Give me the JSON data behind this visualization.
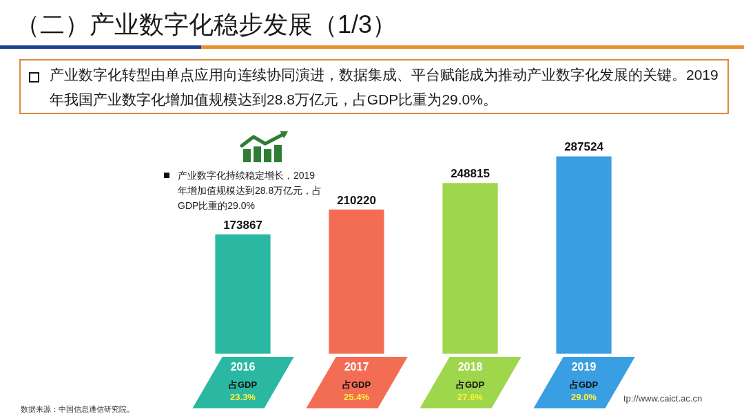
{
  "chart_data": {
    "type": "bar",
    "title": "（二）产业数字化稳步发展（1/3）",
    "subtitle": "产业数字化转型由单点应用向连续协同演进，数据集成、平台赋能成为推动产业数字化发展的关键。2019年我国产业数字化增加值规模达到28.8万亿元，占GDP比重为29.0%。",
    "categories": [
      "2016",
      "2017",
      "2018",
      "2019"
    ],
    "values": [
      173867,
      210220,
      248815,
      287524
    ],
    "colors": [
      "#2bb8a2",
      "#f36d55",
      "#9ed64c",
      "#3a9ee2"
    ],
    "data_labels": true,
    "tick_labels": "x",
    "annotations": [
      "产业数字化持续稳定增长，2019年增加值规模达到28.8万亿元，占GDP比重的29.0%",
      "占GDP",
      "23.3%",
      "占GDP",
      "25.4%",
      "占GDP",
      "27.6%",
      "占GDP",
      "29.0%",
      "数据来源：中国信息通信研究院。",
      "tp://www.caict.ac.cn"
    ]
  }
}
